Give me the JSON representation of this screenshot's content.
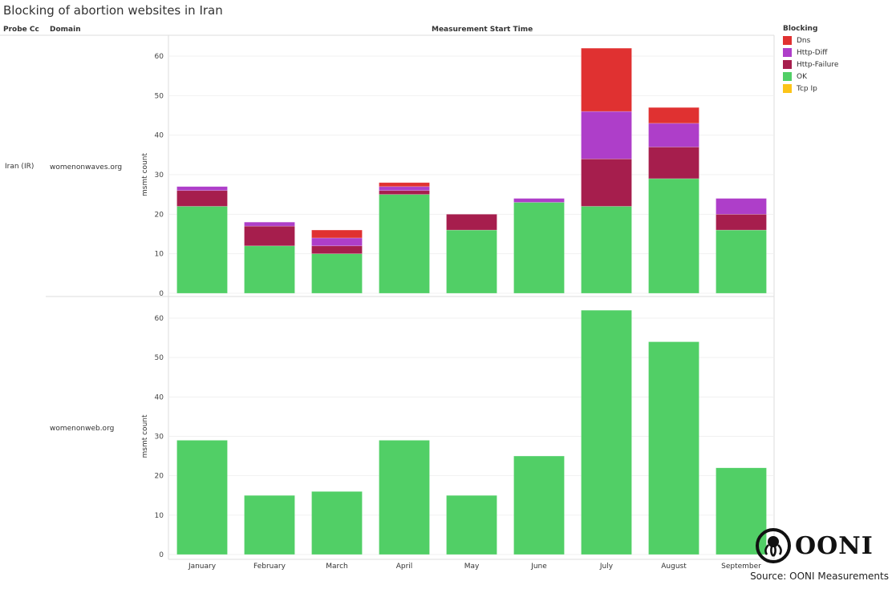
{
  "title": "Blocking of abortion websites in Iran",
  "headers": {
    "probe_cc": "Probe Cc",
    "domain": "Domain",
    "x_title": "Measurement Start Time"
  },
  "probe_cc": "Iran (IR)",
  "legend": {
    "title": "Blocking",
    "items": [
      {
        "label": "Dns",
        "color": "#e03131"
      },
      {
        "label": "Http-Diff",
        "color": "#ae3ec9"
      },
      {
        "label": "Http-Failure",
        "color": "#a61e4d"
      },
      {
        "label": "OK",
        "color": "#51cf66"
      },
      {
        "label": "Tcp Ip",
        "color": "#fcc419"
      }
    ]
  },
  "source": "Source: OONI Measurements",
  "logo_text": "OONI",
  "chart_data": [
    {
      "type": "bar",
      "stacked": true,
      "domain": "womenonwaves.org",
      "ylabel": "msmt count",
      "ylim": [
        0,
        62
      ],
      "yticks": [
        0,
        10,
        20,
        30,
        40,
        50,
        60
      ],
      "grid": true,
      "legend_position": "right",
      "categories": [
        "January",
        "February",
        "March",
        "April",
        "May",
        "June",
        "July",
        "August",
        "September"
      ],
      "series": [
        {
          "name": "OK",
          "values": [
            22,
            12,
            10,
            25,
            16,
            23,
            22,
            29,
            16
          ]
        },
        {
          "name": "Http-Failure",
          "values": [
            4,
            5,
            2,
            1,
            4,
            0,
            12,
            8,
            4
          ]
        },
        {
          "name": "Http-Diff",
          "values": [
            1,
            1,
            2,
            1,
            0,
            1,
            12,
            6,
            4
          ]
        },
        {
          "name": "Dns",
          "values": [
            0,
            0,
            2,
            1,
            0,
            0,
            16,
            4,
            0
          ]
        },
        {
          "name": "Tcp Ip",
          "values": [
            0,
            0,
            0,
            0,
            0,
            0,
            0,
            0,
            0
          ]
        }
      ]
    },
    {
      "type": "bar",
      "stacked": true,
      "domain": "womenonweb.org",
      "ylabel": "msmt count",
      "ylim": [
        0,
        62
      ],
      "yticks": [
        0,
        10,
        20,
        30,
        40,
        50,
        60
      ],
      "grid": true,
      "legend_position": "right",
      "categories": [
        "January",
        "February",
        "March",
        "April",
        "May",
        "June",
        "July",
        "August",
        "September"
      ],
      "series": [
        {
          "name": "OK",
          "values": [
            29,
            15,
            16,
            29,
            15,
            25,
            62,
            54,
            22
          ]
        },
        {
          "name": "Http-Failure",
          "values": [
            0,
            0,
            0,
            0,
            0,
            0,
            0,
            0,
            0
          ]
        },
        {
          "name": "Http-Diff",
          "values": [
            0,
            0,
            0,
            0,
            0,
            0,
            0,
            0,
            0
          ]
        },
        {
          "name": "Dns",
          "values": [
            0,
            0,
            0,
            0,
            0,
            0,
            0,
            0,
            0
          ]
        },
        {
          "name": "Tcp Ip",
          "values": [
            0,
            0,
            0,
            0,
            0,
            0,
            0,
            0,
            0
          ]
        }
      ]
    }
  ]
}
